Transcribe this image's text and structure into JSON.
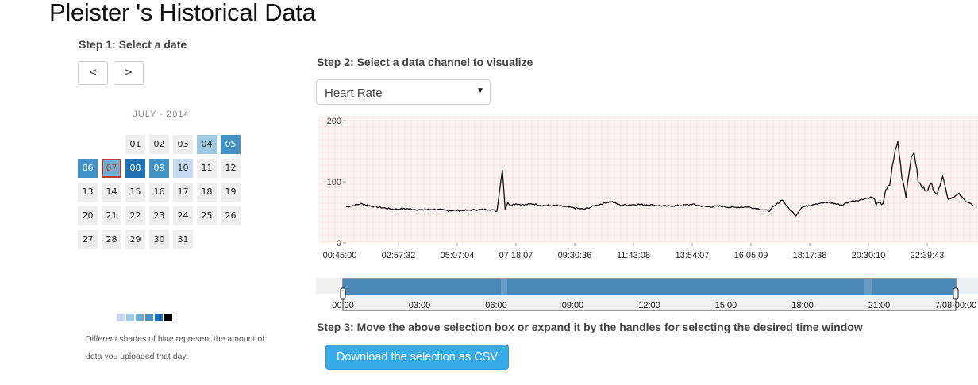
{
  "page": {
    "title": "Pleister 's Historical Data"
  },
  "step1": {
    "label": "Step 1: Select a date",
    "prev_label": "<",
    "next_label": ">",
    "month_label": "JULY - 2014",
    "selected_day": "07",
    "days": [
      {
        "label": "01",
        "shade": 0
      },
      {
        "label": "02",
        "shade": 0
      },
      {
        "label": "03",
        "shade": 0
      },
      {
        "label": "04",
        "shade": 2
      },
      {
        "label": "05",
        "shade": 4
      },
      {
        "label": "06",
        "shade": 4
      },
      {
        "label": "07",
        "shade": 3
      },
      {
        "label": "08",
        "shade": 5
      },
      {
        "label": "09",
        "shade": 4
      },
      {
        "label": "10",
        "shade": 1
      },
      {
        "label": "11",
        "shade": 0
      },
      {
        "label": "12",
        "shade": 0
      },
      {
        "label": "13",
        "shade": 0
      },
      {
        "label": "14",
        "shade": 0
      },
      {
        "label": "15",
        "shade": 0
      },
      {
        "label": "16",
        "shade": 0
      },
      {
        "label": "17",
        "shade": 0
      },
      {
        "label": "18",
        "shade": 0
      },
      {
        "label": "19",
        "shade": 0
      },
      {
        "label": "20",
        "shade": 0
      },
      {
        "label": "21",
        "shade": 0
      },
      {
        "label": "22",
        "shade": 0
      },
      {
        "label": "23",
        "shade": 0
      },
      {
        "label": "24",
        "shade": 0
      },
      {
        "label": "25",
        "shade": 0
      },
      {
        "label": "26",
        "shade": 0
      },
      {
        "label": "27",
        "shade": 0
      },
      {
        "label": "28",
        "shade": 0
      },
      {
        "label": "29",
        "shade": 0
      },
      {
        "label": "30",
        "shade": 0
      },
      {
        "label": "31",
        "shade": 0
      }
    ],
    "legend_colors": [
      "#c6dbef",
      "#9ecae1",
      "#6baed6",
      "#4292c6",
      "#2171b5",
      "#000000"
    ],
    "note_line1": "Different shades of blue represent the amount of",
    "note_line2": "data you uploaded that day."
  },
  "colors": {
    "shades": [
      "#eeeeee",
      "#c6dbef",
      "#9ecae1",
      "#6baed6",
      "#4292c6",
      "#2171b5"
    ],
    "selected_border": "#c0392b",
    "selected_text": "#c0392b",
    "navigator_fill": "#4a88b8",
    "button_blue": "#39aae8"
  },
  "step2": {
    "label": "Step 2: Select a data channel to visualize",
    "select_value": "Heart Rate",
    "caret_icon": "triangle-down"
  },
  "step3": {
    "label": "Step 3: Move the above selection box or expand it by the handles for selecting the desired time window",
    "download_label": "Download the selection as CSV"
  },
  "chart_data": [
    {
      "type": "line",
      "title": "",
      "xlabel": "",
      "ylabel": "",
      "ylim": [
        0,
        200
      ],
      "y_ticks": [
        "0",
        "100",
        "200"
      ],
      "x_tick_labels": [
        "00:45:00",
        "02:57:32",
        "05:07:04",
        "07:18:07",
        "09:30:36",
        "11:43:08",
        "13:54:07",
        "16:05:09",
        "18:17:38",
        "20:30:10",
        "22:39:43"
      ],
      "grid": true,
      "series": [
        {
          "x_hours": [
            0.75,
            1.0,
            1.3,
            1.7,
            2.0,
            2.5,
            3.0,
            3.5,
            4.0,
            4.5,
            5.0,
            5.5,
            6.0,
            6.3,
            6.5,
            6.6,
            6.7,
            6.8,
            7.0,
            7.3,
            7.6,
            8.0,
            8.5,
            9.0,
            9.5,
            10.0,
            10.5,
            10.8,
            11.0,
            11.5,
            12.0,
            12.5,
            13.0,
            13.5,
            14.0,
            14.5,
            15.0,
            15.5,
            16.0,
            16.3,
            16.8,
            17.0,
            17.3,
            17.5,
            18.0,
            18.5,
            19.0,
            19.3,
            19.6,
            19.9,
            20.1,
            20.3,
            20.5,
            20.6,
            20.75,
            20.9,
            21.05,
            21.2,
            21.35,
            21.5,
            21.65,
            21.8,
            21.95,
            22.1,
            22.3,
            22.5,
            22.7,
            22.9,
            23.1,
            23.3,
            23.5,
            23.7,
            23.85
          ],
          "values": [
            59,
            61,
            64,
            60,
            58,
            55,
            56,
            54,
            55,
            53,
            53,
            54,
            55,
            52,
            120,
            56,
            65,
            62,
            64,
            62,
            64,
            61,
            61,
            58,
            55,
            62,
            68,
            62,
            62,
            63,
            62,
            60,
            61,
            63,
            59,
            60,
            58,
            59,
            55,
            52,
            71,
            58,
            45,
            58,
            64,
            66,
            62,
            68,
            70,
            73,
            75,
            62,
            66,
            83,
            95,
            140,
            165,
            110,
            78,
            130,
            150,
            100,
            90,
            88,
            95,
            80,
            110,
            72,
            75,
            80,
            70,
            65,
            60
          ]
        }
      ]
    },
    {
      "type": "area",
      "title": "",
      "xlabel": "",
      "ylabel": "",
      "x_tick_labels": [
        "00:00",
        "03:00",
        "06:00",
        "09:00",
        "12:00",
        "15:00",
        "18:00",
        "21:00",
        "7/08-00:00"
      ],
      "selection": {
        "start_hour": 0,
        "end_hour": 24
      }
    }
  ]
}
